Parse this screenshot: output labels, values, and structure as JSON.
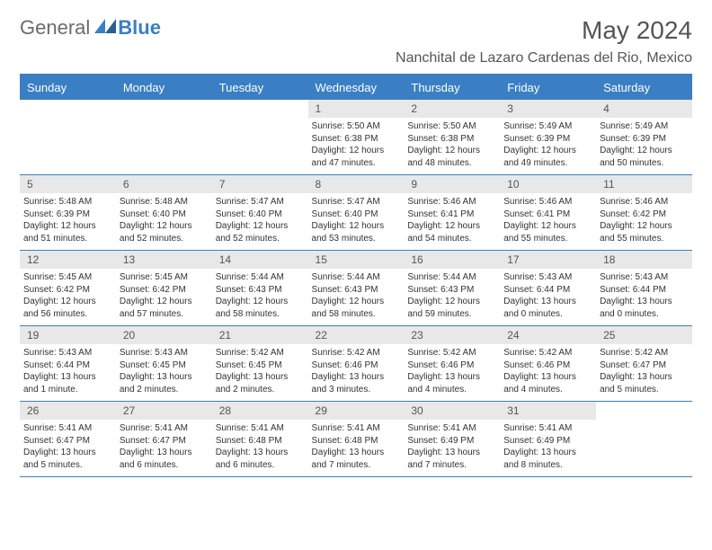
{
  "logo": {
    "text1": "General",
    "text2": "Blue"
  },
  "title": "May 2024",
  "location": "Nanchital de Lazaro Cardenas del Rio, Mexico",
  "colors": {
    "brand": "#3a7fc4",
    "grayText": "#6b6b6b",
    "dayHeaderBg": "#e8e8e8"
  },
  "dayNames": [
    "Sunday",
    "Monday",
    "Tuesday",
    "Wednesday",
    "Thursday",
    "Friday",
    "Saturday"
  ],
  "weeks": [
    [
      {
        "n": "",
        "sr": "",
        "ss": "",
        "dl": ""
      },
      {
        "n": "",
        "sr": "",
        "ss": "",
        "dl": ""
      },
      {
        "n": "",
        "sr": "",
        "ss": "",
        "dl": ""
      },
      {
        "n": "1",
        "sr": "5:50 AM",
        "ss": "6:38 PM",
        "dl": "12 hours and 47 minutes."
      },
      {
        "n": "2",
        "sr": "5:50 AM",
        "ss": "6:38 PM",
        "dl": "12 hours and 48 minutes."
      },
      {
        "n": "3",
        "sr": "5:49 AM",
        "ss": "6:39 PM",
        "dl": "12 hours and 49 minutes."
      },
      {
        "n": "4",
        "sr": "5:49 AM",
        "ss": "6:39 PM",
        "dl": "12 hours and 50 minutes."
      }
    ],
    [
      {
        "n": "5",
        "sr": "5:48 AM",
        "ss": "6:39 PM",
        "dl": "12 hours and 51 minutes."
      },
      {
        "n": "6",
        "sr": "5:48 AM",
        "ss": "6:40 PM",
        "dl": "12 hours and 52 minutes."
      },
      {
        "n": "7",
        "sr": "5:47 AM",
        "ss": "6:40 PM",
        "dl": "12 hours and 52 minutes."
      },
      {
        "n": "8",
        "sr": "5:47 AM",
        "ss": "6:40 PM",
        "dl": "12 hours and 53 minutes."
      },
      {
        "n": "9",
        "sr": "5:46 AM",
        "ss": "6:41 PM",
        "dl": "12 hours and 54 minutes."
      },
      {
        "n": "10",
        "sr": "5:46 AM",
        "ss": "6:41 PM",
        "dl": "12 hours and 55 minutes."
      },
      {
        "n": "11",
        "sr": "5:46 AM",
        "ss": "6:42 PM",
        "dl": "12 hours and 55 minutes."
      }
    ],
    [
      {
        "n": "12",
        "sr": "5:45 AM",
        "ss": "6:42 PM",
        "dl": "12 hours and 56 minutes."
      },
      {
        "n": "13",
        "sr": "5:45 AM",
        "ss": "6:42 PM",
        "dl": "12 hours and 57 minutes."
      },
      {
        "n": "14",
        "sr": "5:44 AM",
        "ss": "6:43 PM",
        "dl": "12 hours and 58 minutes."
      },
      {
        "n": "15",
        "sr": "5:44 AM",
        "ss": "6:43 PM",
        "dl": "12 hours and 58 minutes."
      },
      {
        "n": "16",
        "sr": "5:44 AM",
        "ss": "6:43 PM",
        "dl": "12 hours and 59 minutes."
      },
      {
        "n": "17",
        "sr": "5:43 AM",
        "ss": "6:44 PM",
        "dl": "13 hours and 0 minutes."
      },
      {
        "n": "18",
        "sr": "5:43 AM",
        "ss": "6:44 PM",
        "dl": "13 hours and 0 minutes."
      }
    ],
    [
      {
        "n": "19",
        "sr": "5:43 AM",
        "ss": "6:44 PM",
        "dl": "13 hours and 1 minute."
      },
      {
        "n": "20",
        "sr": "5:43 AM",
        "ss": "6:45 PM",
        "dl": "13 hours and 2 minutes."
      },
      {
        "n": "21",
        "sr": "5:42 AM",
        "ss": "6:45 PM",
        "dl": "13 hours and 2 minutes."
      },
      {
        "n": "22",
        "sr": "5:42 AM",
        "ss": "6:46 PM",
        "dl": "13 hours and 3 minutes."
      },
      {
        "n": "23",
        "sr": "5:42 AM",
        "ss": "6:46 PM",
        "dl": "13 hours and 4 minutes."
      },
      {
        "n": "24",
        "sr": "5:42 AM",
        "ss": "6:46 PM",
        "dl": "13 hours and 4 minutes."
      },
      {
        "n": "25",
        "sr": "5:42 AM",
        "ss": "6:47 PM",
        "dl": "13 hours and 5 minutes."
      }
    ],
    [
      {
        "n": "26",
        "sr": "5:41 AM",
        "ss": "6:47 PM",
        "dl": "13 hours and 5 minutes."
      },
      {
        "n": "27",
        "sr": "5:41 AM",
        "ss": "6:47 PM",
        "dl": "13 hours and 6 minutes."
      },
      {
        "n": "28",
        "sr": "5:41 AM",
        "ss": "6:48 PM",
        "dl": "13 hours and 6 minutes."
      },
      {
        "n": "29",
        "sr": "5:41 AM",
        "ss": "6:48 PM",
        "dl": "13 hours and 7 minutes."
      },
      {
        "n": "30",
        "sr": "5:41 AM",
        "ss": "6:49 PM",
        "dl": "13 hours and 7 minutes."
      },
      {
        "n": "31",
        "sr": "5:41 AM",
        "ss": "6:49 PM",
        "dl": "13 hours and 8 minutes."
      },
      {
        "n": "",
        "sr": "",
        "ss": "",
        "dl": ""
      }
    ]
  ],
  "labels": {
    "sunrise": "Sunrise:",
    "sunset": "Sunset:",
    "daylight": "Daylight:"
  }
}
